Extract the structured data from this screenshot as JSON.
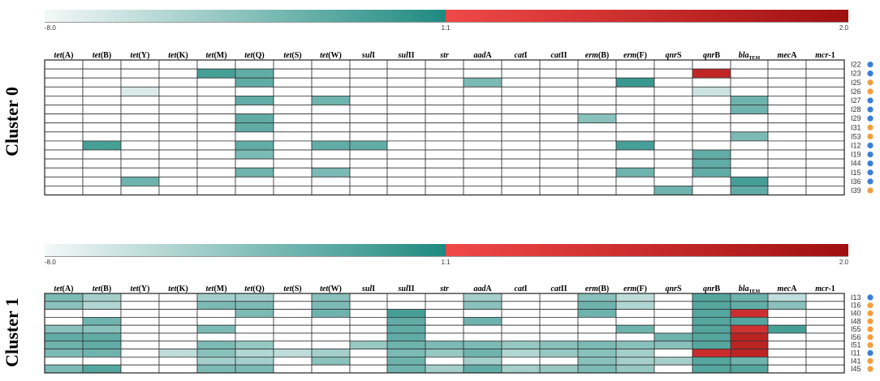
{
  "colorbar": {
    "tick_left": "-8.0",
    "tick_mid": "1:1",
    "tick_right": "2.0",
    "colors": {
      "low": "#f4f8f8",
      "teal": "#1e8a80",
      "red_mid": "#f04848",
      "dark_red": "#a01010"
    }
  },
  "genes": [
    {
      "it": "tet",
      "rest": "(A)"
    },
    {
      "it": "tet",
      "rest": "(B)"
    },
    {
      "it": "tet",
      "rest": "(Y)"
    },
    {
      "it": "tet",
      "rest": "(K)"
    },
    {
      "it": "tet",
      "rest": "(M)"
    },
    {
      "it": "tet",
      "rest": "(Q)"
    },
    {
      "it": "tet",
      "rest": "(S)"
    },
    {
      "it": "tet",
      "rest": "(W)"
    },
    {
      "it": "sul",
      "rest": "I"
    },
    {
      "it": "sul",
      "rest": "II"
    },
    {
      "it": "str",
      "rest": ""
    },
    {
      "it": "aad",
      "rest": "A"
    },
    {
      "it": "cat",
      "rest": "I"
    },
    {
      "it": "cat",
      "rest": "II"
    },
    {
      "it": "erm",
      "rest": "(B)"
    },
    {
      "it": "erm",
      "rest": "(F)"
    },
    {
      "it": "qnr",
      "rest": "S"
    },
    {
      "it": "qnr",
      "rest": "B"
    },
    {
      "it": "bla",
      "rest": "",
      "sub": "TEM"
    },
    {
      "it": "mec",
      "rest": "A"
    },
    {
      "it": "mcr",
      "rest": "-1"
    }
  ],
  "chart_data": [
    {
      "type": "heatmap",
      "title": "Cluster 0",
      "columns": [
        "tet(A)",
        "tet(B)",
        "tet(Y)",
        "tet(K)",
        "tet(M)",
        "tet(Q)",
        "tet(S)",
        "tet(W)",
        "sulI",
        "sulII",
        "str",
        "aadA",
        "catI",
        "catII",
        "erm(B)",
        "erm(F)",
        "qnrS",
        "qnrB",
        "blaTEM",
        "mecA",
        "mcr-1"
      ],
      "rows": [
        "I22",
        "I23",
        "I25",
        "I26",
        "I27",
        "I28",
        "I29",
        "I31",
        "I53",
        "I12",
        "I19",
        "I44",
        "I15",
        "I36",
        "I39"
      ],
      "row_group_colors": [
        "#3a7fd5",
        "#3a7fd5",
        "#f0a040",
        "#f0a040",
        "#3a7fd5",
        "#3a7fd5",
        "#3a7fd5",
        "#f0a040",
        "#f0a040",
        "#3a7fd5",
        "#3a7fd5",
        "#3a7fd5",
        "#3a7fd5",
        "#3a7fd5",
        "#f0a040"
      ],
      "value_range": [
        -8.0,
        2.0
      ],
      "values": [
        [
          null,
          null,
          null,
          null,
          null,
          null,
          null,
          null,
          null,
          null,
          null,
          null,
          null,
          null,
          null,
          null,
          null,
          null,
          null,
          null,
          null
        ],
        [
          null,
          null,
          null,
          null,
          -1.5,
          -2.5,
          null,
          null,
          null,
          null,
          null,
          null,
          null,
          null,
          null,
          null,
          null,
          1.2,
          null,
          null,
          null
        ],
        [
          null,
          null,
          null,
          null,
          null,
          -2.5,
          null,
          null,
          null,
          null,
          null,
          -3.5,
          null,
          null,
          null,
          -1.0,
          null,
          null,
          null,
          null,
          null
        ],
        [
          null,
          null,
          -7.0,
          null,
          null,
          null,
          null,
          null,
          null,
          null,
          null,
          null,
          null,
          null,
          null,
          null,
          null,
          -6.5,
          null,
          null,
          null
        ],
        [
          null,
          null,
          null,
          null,
          null,
          -2.5,
          null,
          -3.0,
          null,
          null,
          null,
          null,
          null,
          null,
          null,
          null,
          null,
          null,
          -3.0,
          null,
          null
        ],
        [
          null,
          null,
          null,
          null,
          null,
          null,
          null,
          null,
          null,
          null,
          null,
          null,
          null,
          null,
          null,
          null,
          null,
          null,
          -3.0,
          null,
          null
        ],
        [
          null,
          null,
          null,
          null,
          null,
          -2.5,
          null,
          null,
          null,
          null,
          null,
          null,
          null,
          null,
          -4.0,
          null,
          null,
          null,
          null,
          null,
          null
        ],
        [
          null,
          null,
          null,
          null,
          null,
          -2.5,
          null,
          null,
          null,
          null,
          null,
          null,
          null,
          null,
          null,
          null,
          null,
          null,
          null,
          null,
          null
        ],
        [
          null,
          null,
          null,
          null,
          null,
          null,
          null,
          null,
          null,
          null,
          null,
          null,
          null,
          null,
          null,
          null,
          null,
          null,
          -3.5,
          null,
          null
        ],
        [
          null,
          -1.5,
          null,
          null,
          null,
          -2.5,
          null,
          -2.5,
          -2.5,
          null,
          null,
          null,
          null,
          null,
          null,
          -1.5,
          null,
          null,
          null,
          null,
          null
        ],
        [
          null,
          null,
          null,
          null,
          null,
          -3.5,
          null,
          null,
          null,
          null,
          null,
          null,
          null,
          null,
          null,
          null,
          null,
          -2.5,
          null,
          null,
          null
        ],
        [
          null,
          null,
          null,
          null,
          null,
          null,
          null,
          null,
          null,
          null,
          null,
          null,
          null,
          null,
          null,
          null,
          null,
          -2.5,
          null,
          null,
          null
        ],
        [
          null,
          null,
          null,
          null,
          null,
          -3.0,
          null,
          -3.5,
          null,
          null,
          null,
          null,
          null,
          null,
          null,
          -3.0,
          null,
          -2.5,
          null,
          null,
          null
        ],
        [
          null,
          null,
          -3.0,
          null,
          null,
          null,
          null,
          null,
          null,
          null,
          null,
          null,
          null,
          null,
          null,
          null,
          null,
          null,
          -1.5,
          null,
          null
        ],
        [
          null,
          null,
          null,
          null,
          null,
          null,
          null,
          null,
          null,
          null,
          null,
          null,
          null,
          null,
          null,
          null,
          -3.0,
          null,
          -2.5,
          null,
          null
        ]
      ]
    },
    {
      "type": "heatmap",
      "title": "Cluster 1",
      "columns": [
        "tet(A)",
        "tet(B)",
        "tet(Y)",
        "tet(K)",
        "tet(M)",
        "tet(Q)",
        "tet(S)",
        "tet(W)",
        "sulI",
        "sulII",
        "str",
        "aadA",
        "catI",
        "catII",
        "erm(B)",
        "erm(F)",
        "qnrS",
        "qnrB",
        "blaTEM",
        "mecA",
        "mcr-1"
      ],
      "rows": [
        "I13",
        "I16",
        "I40",
        "I48",
        "I55",
        "I56",
        "I51",
        "I11",
        "I41",
        "I45"
      ],
      "row_group_colors": [
        "#3a7fd5",
        "#f0a040",
        "#f0a040",
        "#f0a040",
        "#f0a040",
        "#f0a040",
        "#f0a040",
        "#3a7fd5",
        "#f0a040",
        "#f0a040"
      ],
      "value_range": [
        -8.0,
        2.0
      ],
      "values": [
        [
          -3.5,
          -5.0,
          null,
          null,
          -5.0,
          -5.0,
          null,
          -4.0,
          null,
          null,
          null,
          -5.0,
          null,
          null,
          -4.0,
          -6.0,
          null,
          -2.0,
          -3.0,
          -6.0,
          null
        ],
        [
          -4.0,
          -5.5,
          null,
          null,
          -3.5,
          -3.5,
          null,
          -3.5,
          null,
          null,
          null,
          -4.0,
          null,
          null,
          -3.0,
          -5.5,
          null,
          -2.0,
          -2.5,
          -4.0,
          null
        ],
        [
          null,
          null,
          null,
          null,
          null,
          -3.5,
          null,
          -3.0,
          null,
          -1.5,
          null,
          null,
          null,
          null,
          -3.0,
          null,
          null,
          -2.0,
          0.9,
          null,
          null
        ],
        [
          null,
          -3.0,
          null,
          null,
          null,
          null,
          null,
          null,
          null,
          -2.5,
          null,
          -3.0,
          null,
          null,
          null,
          null,
          null,
          -2.0,
          -2.0,
          null,
          null
        ],
        [
          -4.0,
          -4.0,
          null,
          null,
          -3.5,
          null,
          null,
          null,
          null,
          -2.5,
          null,
          null,
          null,
          null,
          null,
          -3.0,
          null,
          -2.0,
          0.8,
          -1.5,
          null
        ],
        [
          -2.5,
          -2.5,
          null,
          null,
          null,
          null,
          null,
          null,
          null,
          -2.5,
          null,
          null,
          null,
          null,
          null,
          null,
          -3.0,
          -2.0,
          1.3,
          null,
          null
        ],
        [
          -3.0,
          -2.5,
          null,
          null,
          -3.5,
          -4.5,
          null,
          null,
          -4.5,
          -3.0,
          -3.5,
          -3.5,
          -4.5,
          -4.0,
          -3.5,
          -4.0,
          -4.0,
          -2.0,
          1.3,
          null,
          null
        ],
        [
          -3.5,
          -3.0,
          null,
          -6.0,
          -4.0,
          -5.5,
          -6.0,
          -5.0,
          null,
          -3.5,
          -4.5,
          -3.0,
          -5.5,
          -4.5,
          -4.0,
          -5.0,
          null,
          1.0,
          1.3,
          null,
          null
        ],
        [
          null,
          null,
          null,
          null,
          -5.0,
          -5.0,
          null,
          -4.0,
          null,
          -3.0,
          null,
          -5.0,
          null,
          null,
          -4.0,
          -5.0,
          -5.0,
          -2.0,
          -3.0,
          null,
          null
        ],
        [
          -3.5,
          -2.0,
          null,
          null,
          -3.5,
          -3.5,
          null,
          null,
          null,
          -3.0,
          -5.0,
          -2.5,
          -5.0,
          -4.5,
          -3.5,
          -4.5,
          null,
          -2.0,
          -2.0,
          null,
          null
        ]
      ]
    }
  ]
}
